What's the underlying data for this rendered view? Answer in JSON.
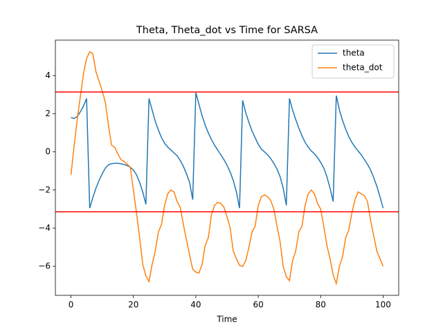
{
  "chart_data": {
    "type": "line",
    "title": "Theta, Theta_dot vs Time for SARSA",
    "x_label": "Time",
    "x": [
      0,
      1,
      2,
      3,
      4,
      5,
      6,
      7,
      8,
      9,
      10,
      11,
      12,
      13,
      14,
      15,
      16,
      17,
      18,
      19,
      20,
      21,
      22,
      23,
      24,
      25,
      26,
      27,
      28,
      29,
      30,
      31,
      32,
      33,
      34,
      35,
      36,
      37,
      38,
      39,
      40,
      41,
      42,
      43,
      44,
      45,
      46,
      47,
      48,
      49,
      50,
      51,
      52,
      53,
      54,
      55,
      56,
      57,
      58,
      59,
      60,
      61,
      62,
      63,
      64,
      65,
      66,
      67,
      68,
      69,
      70,
      71,
      72,
      73,
      74,
      75,
      76,
      77,
      78,
      79,
      80,
      81,
      82,
      83,
      84,
      85,
      86,
      87,
      88,
      89,
      90,
      91,
      92,
      93,
      94,
      95,
      96,
      97,
      98,
      99,
      100
    ],
    "series": [
      {
        "name": "theta",
        "color": "#1f77b4",
        "values": [
          1.8,
          1.75,
          1.85,
          2.1,
          2.4,
          2.8,
          -2.95,
          -2.4,
          -1.9,
          -1.5,
          -1.15,
          -0.85,
          -0.68,
          -0.62,
          -0.6,
          -0.6,
          -0.62,
          -0.66,
          -0.72,
          -0.8,
          -0.95,
          -1.2,
          -1.6,
          -2.1,
          -2.75,
          2.8,
          2.2,
          1.6,
          1.15,
          0.75,
          0.45,
          0.25,
          0.1,
          -0.05,
          -0.2,
          -0.45,
          -0.75,
          -1.15,
          -1.6,
          -2.5,
          3.1,
          2.5,
          1.9,
          1.4,
          1.0,
          0.65,
          0.35,
          0.1,
          -0.15,
          -0.4,
          -0.7,
          -1.05,
          -1.5,
          -2.1,
          -2.95,
          2.7,
          2.05,
          1.55,
          1.1,
          0.75,
          0.4,
          0.15,
          0,
          -0.15,
          -0.35,
          -0.6,
          -0.9,
          -1.3,
          -1.9,
          -2.8,
          2.8,
          2.2,
          1.7,
          1.25,
          0.85,
          0.5,
          0.25,
          0.05,
          -0.1,
          -0.3,
          -0.55,
          -0.85,
          -1.3,
          -1.9,
          -2.6,
          2.95,
          2.2,
          1.65,
          1.2,
          0.8,
          0.5,
          0.25,
          0.05,
          -0.15,
          -0.4,
          -0.65,
          -0.95,
          -1.35,
          -1.8,
          -2.35,
          -2.95
        ]
      },
      {
        "name": "theta_dot",
        "color": "#ff7f0e",
        "values": [
          -1.2,
          0.3,
          1.7,
          2.9,
          4.1,
          4.9,
          5.25,
          5.15,
          4.2,
          3.7,
          3.2,
          2.6,
          1.4,
          0.35,
          0.25,
          -0.1,
          -0.4,
          -0.5,
          -0.65,
          -0.8,
          -2.0,
          -3.2,
          -4.5,
          -5.9,
          -6.5,
          -6.8,
          -5.9,
          -5.2,
          -4.2,
          -3.8,
          -2.8,
          -2.2,
          -2.0,
          -2.1,
          -2.6,
          -2.9,
          -3.8,
          -4.6,
          -5.4,
          -6.15,
          -6.3,
          -6.35,
          -5.9,
          -4.9,
          -4.5,
          -3.3,
          -2.8,
          -2.65,
          -2.7,
          -2.9,
          -3.4,
          -4.0,
          -5.2,
          -5.6,
          -5.95,
          -6.0,
          -5.7,
          -5.0,
          -4.2,
          -3.9,
          -2.8,
          -2.35,
          -2.25,
          -2.35,
          -2.55,
          -3.0,
          -3.9,
          -4.7,
          -6.0,
          -6.55,
          -6.75,
          -5.7,
          -5.2,
          -4.2,
          -3.9,
          -2.8,
          -2.2,
          -2.0,
          -2.2,
          -2.7,
          -3.0,
          -3.9,
          -4.9,
          -5.6,
          -6.45,
          -6.9,
          -6.0,
          -5.5,
          -4.5,
          -4.1,
          -3.2,
          -2.5,
          -2.1,
          -2.2,
          -2.3,
          -2.6,
          -3.6,
          -4.4,
          -5.2,
          -5.6,
          -6.0
        ]
      }
    ],
    "hlines": [
      3.14159,
      -3.14159
    ],
    "hline_color": "#ff0000",
    "xlim": [
      -5,
      105
    ],
    "ylim": [
      -7.52,
      5.86
    ],
    "xticks": [
      0,
      20,
      40,
      60,
      80,
      100
    ],
    "yticks": [
      {
        "value": -6,
        "label": "−6"
      },
      {
        "value": -4,
        "label": "−4"
      },
      {
        "value": -2,
        "label": "−2"
      },
      0,
      2,
      4
    ],
    "grid": false,
    "legend": "upper right"
  }
}
